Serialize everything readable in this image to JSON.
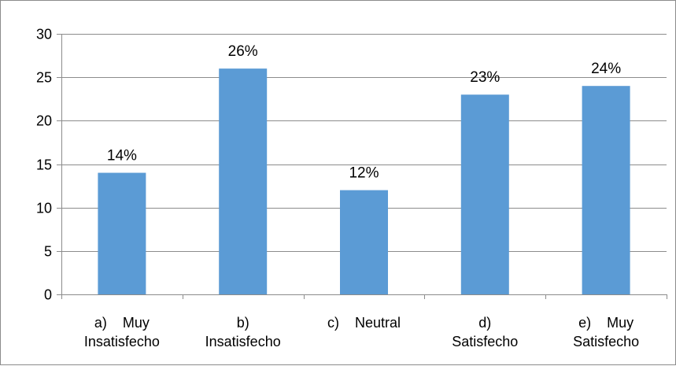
{
  "chart_data": {
    "type": "bar",
    "title": "",
    "xlabel": "",
    "ylabel": "",
    "ylim": [
      0,
      30
    ],
    "yticks": [
      0,
      5,
      10,
      15,
      20,
      25,
      30
    ],
    "grid": true,
    "legend": "none",
    "bar_color": "#5b9bd5",
    "categories": [
      [
        "a)    Muy",
        "Insatisfecho"
      ],
      [
        "b)",
        "Insatisfecho"
      ],
      [
        "c)    Neutral"
      ],
      [
        "d)",
        "Satisfecho"
      ],
      [
        "e)    Muy",
        "Satisfecho"
      ]
    ],
    "values": [
      14,
      26,
      12,
      23,
      24
    ],
    "data_labels": [
      "14%",
      "26%",
      "12%",
      "23%",
      "24%"
    ]
  }
}
